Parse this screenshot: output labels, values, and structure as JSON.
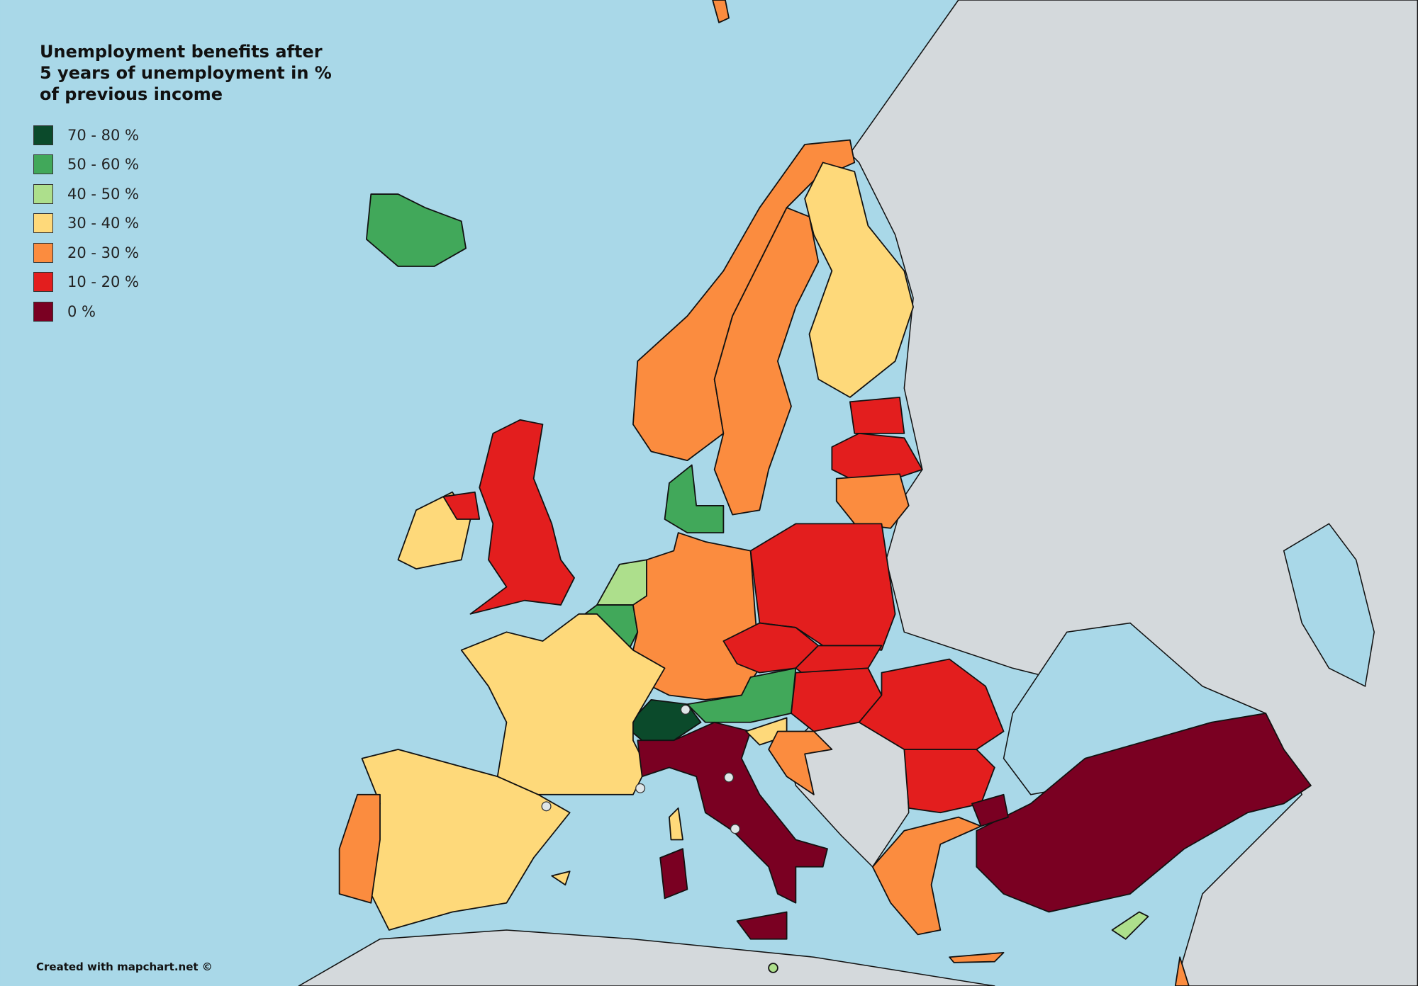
{
  "title": "Unemployment benefits after 5 years of unemployment in % of previous income",
  "legend": [
    {
      "label": "70 - 80 %",
      "color": "#0b4a2b"
    },
    {
      "label": "50 - 60 %",
      "color": "#41a85a"
    },
    {
      "label": "40 - 50 %",
      "color": "#addf8c"
    },
    {
      "label": "30 - 40 %",
      "color": "#fed97a"
    },
    {
      "label": "20 - 30 %",
      "color": "#fb8c3f"
    },
    {
      "label": "10 - 20 %",
      "color": "#e31e1e"
    },
    {
      "label": "0 %",
      "color": "#7a0022"
    }
  ],
  "credit": "Created with mapchart.net ©"
}
